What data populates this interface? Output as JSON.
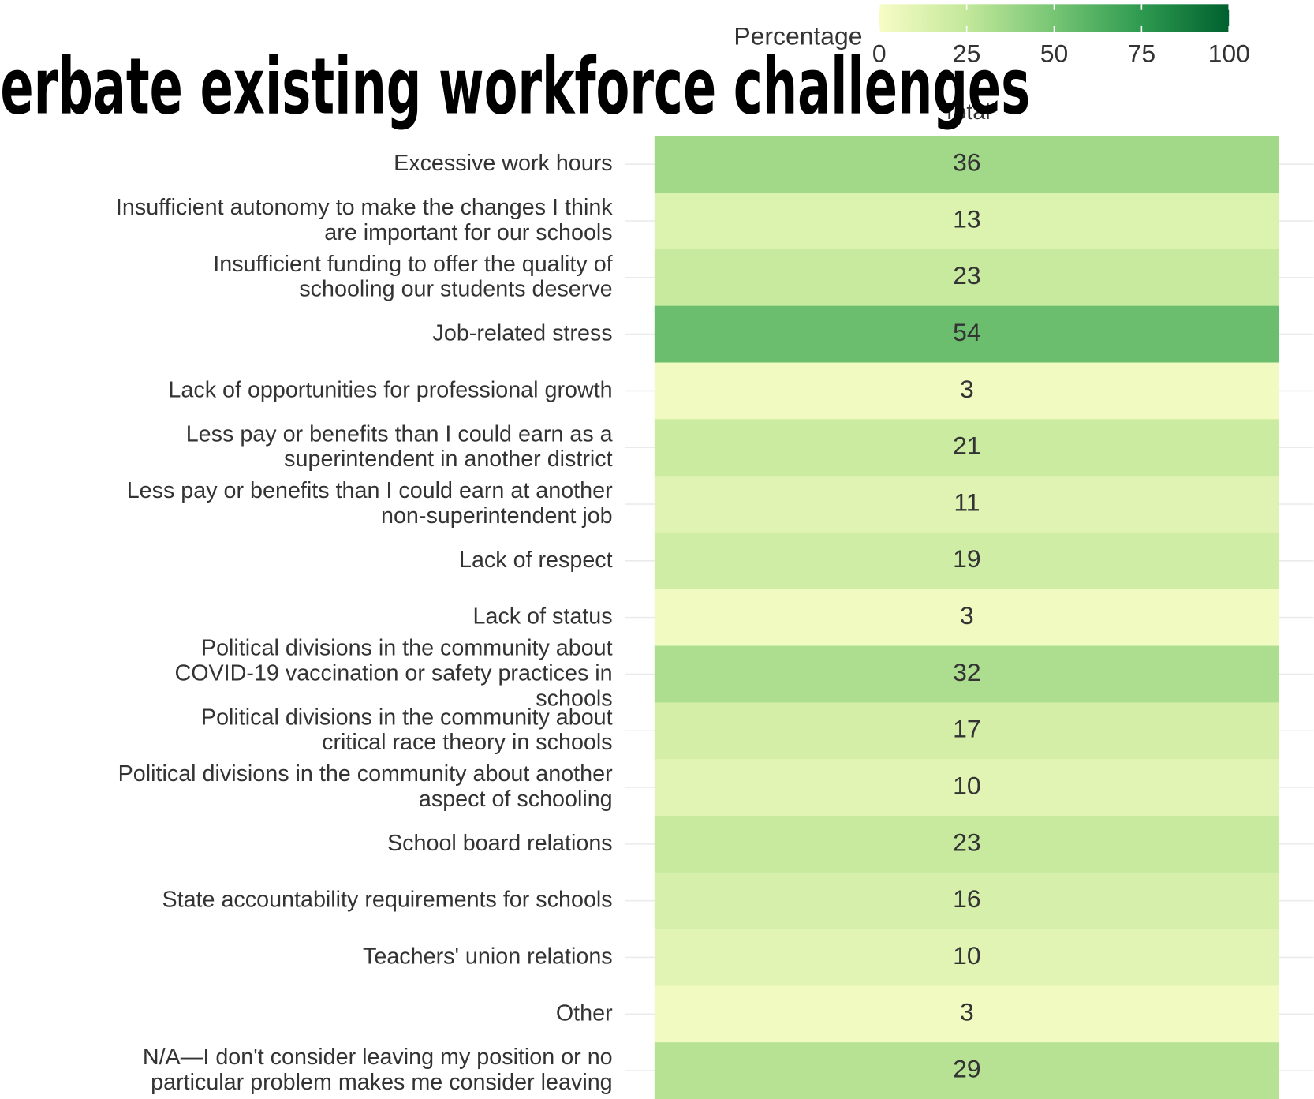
{
  "chart_data": {
    "type": "heatmap",
    "title": "erbate existing workforce challenges",
    "legend_title": "Percentage",
    "x_categories": [
      "Total"
    ],
    "categories": [
      "Excessive work hours",
      "Insufficient autonomy to make the changes I think are important for our schools",
      "Insufficient funding to offer the quality of schooling our students deserve",
      "Job-related stress",
      "Lack of opportunities for professional growth",
      "Less pay or benefits than I could earn as a superintendent in another district",
      "Less pay or benefits than I could earn at another non-superintendent job",
      "Lack of respect",
      "Lack of status",
      "Political divisions in the community about COVID-19 vaccination or safety practices in schools",
      "Political divisions in the community about critical race theory in schools",
      "Political divisions in the community about another aspect of schooling",
      "School board relations",
      "State accountability requirements for schools",
      "Teachers' union relations",
      "Other",
      "N/A—I don't consider leaving my position or no particular problem makes me consider leaving"
    ],
    "values": [
      36,
      13,
      23,
      54,
      3,
      21,
      11,
      19,
      3,
      32,
      17,
      10,
      23,
      16,
      10,
      3,
      29
    ],
    "zlim": [
      0,
      100
    ],
    "legend_ticks": [
      0,
      25,
      50,
      75,
      100
    ],
    "colors": [
      "#f7fcc6",
      "#c3e89a",
      "#76c574",
      "#2e9a4f",
      "#00602f"
    ],
    "grid": true
  }
}
